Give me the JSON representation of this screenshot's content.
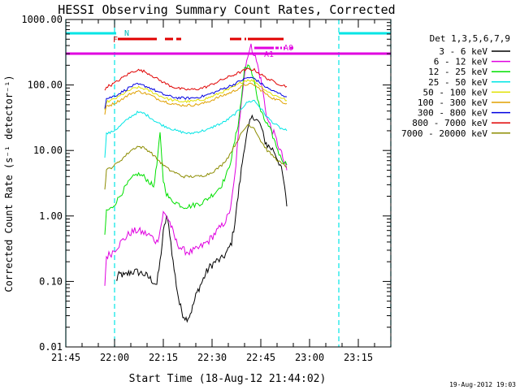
{
  "chart_data": {
    "type": "line",
    "title": "HESSI Observing Summary Count Rates, Corrected",
    "xlabel": "Start Time (18-Aug-12 21:44:02)",
    "ylabel": "Corrected Count Rate (s⁻¹ detector⁻¹)",
    "yscale": "log",
    "ylim": [
      0.01,
      1000
    ],
    "xlim_minutes_after_2145": [
      0,
      100
    ],
    "x_ticks": [
      "21:45",
      "22:00",
      "22:15",
      "22:30",
      "22:45",
      "23:00",
      "23:15"
    ],
    "y_ticks": [
      "0.01",
      "0.10",
      "1.00",
      "10.00",
      "100.00",
      "1000.00"
    ],
    "timestamp": "19-Aug-2012 19:03",
    "legend": {
      "header": "Det 1,3,5,6,7,9",
      "placement": "right"
    },
    "flag_labels": {
      "night": "N",
      "flare": "F",
      "attenuator": "A0",
      "attenuator_level": "A1"
    },
    "flag_bars": {
      "night": {
        "color": "#00e5e5",
        "segments": [
          [
            0,
            15.5
          ],
          [
            84,
            100
          ]
        ]
      },
      "flare": {
        "color": "#e00000",
        "segments": [
          [
            16,
            28
          ],
          [
            30.5,
            33
          ],
          [
            34,
            35.5
          ],
          [
            50.5,
            54
          ],
          [
            55,
            55.5
          ],
          [
            56,
            67
          ]
        ]
      },
      "attenuator_a1": {
        "color": "#e000e0",
        "segments": [
          [
            0,
            100
          ]
        ]
      },
      "attenuator_a0": {
        "color": "#e000e0",
        "segments": [
          [
            58,
            64
          ],
          [
            64.5,
            65.5
          ],
          [
            66,
            66.5
          ],
          [
            67,
            67.5
          ],
          [
            69,
            70
          ]
        ]
      }
    },
    "night_lines_minutes": [
      0,
      15,
      84,
      100
    ],
    "series": [
      {
        "name": "3 - 6 keV",
        "color": "#000000",
        "x": [
          15.5,
          16,
          17,
          18,
          19,
          20,
          22,
          24,
          25,
          26,
          28,
          29,
          30,
          31,
          32,
          33,
          34,
          35,
          36,
          37,
          38,
          39,
          40,
          41,
          42,
          43,
          44,
          45,
          46,
          48,
          50,
          51,
          52,
          53,
          54,
          55,
          56,
          57,
          58,
          59,
          60,
          61,
          62,
          64,
          66,
          67,
          68
        ],
        "y": [
          0.1,
          0.12,
          0.13,
          0.12,
          0.13,
          0.14,
          0.14,
          0.13,
          0.12,
          0.11,
          0.09,
          0.2,
          0.55,
          1.0,
          0.55,
          0.2,
          0.09,
          0.045,
          0.032,
          0.027,
          0.03,
          0.04,
          0.06,
          0.08,
          0.1,
          0.13,
          0.16,
          0.18,
          0.2,
          0.22,
          0.3,
          0.4,
          0.8,
          2.0,
          5.0,
          12,
          20,
          30,
          33,
          28,
          24,
          15,
          12,
          10,
          6,
          3.5,
          1.4
        ]
      },
      {
        "name": "6 - 12 keV",
        "color": "#e000e0",
        "x": [
          12,
          12.5,
          14,
          16,
          18,
          20,
          22,
          24,
          26,
          28,
          29,
          30,
          31,
          32,
          33,
          34,
          36,
          38,
          40,
          42,
          44,
          46,
          48,
          50,
          51,
          52,
          53,
          54,
          55,
          56,
          57,
          58,
          59,
          60,
          61,
          62,
          64,
          66,
          68
        ],
        "y": [
          0.09,
          0.24,
          0.27,
          0.35,
          0.45,
          0.56,
          0.6,
          0.55,
          0.5,
          0.4,
          0.6,
          1.1,
          1.0,
          0.8,
          0.55,
          0.4,
          0.3,
          0.28,
          0.3,
          0.35,
          0.42,
          0.55,
          0.7,
          1.0,
          1.6,
          4.0,
          15,
          60,
          150,
          300,
          380,
          300,
          200,
          120,
          60,
          30,
          18,
          10,
          5
        ]
      },
      {
        "name": "12 - 25 keV",
        "color": "#00e000",
        "x": [
          12,
          12.5,
          14,
          16,
          18,
          20,
          22,
          24,
          26,
          27,
          28,
          29,
          30,
          31,
          32,
          34,
          36,
          38,
          40,
          42,
          44,
          46,
          48,
          50,
          51,
          52,
          53,
          54,
          55,
          56,
          57,
          58,
          59,
          60,
          61,
          62,
          63,
          64,
          66,
          68
        ],
        "y": [
          0.5,
          1.2,
          1.3,
          1.8,
          2.6,
          3.6,
          4.4,
          4.0,
          3.2,
          2.8,
          6.0,
          18,
          3.5,
          2.2,
          1.8,
          1.6,
          1.4,
          1.4,
          1.5,
          1.6,
          1.9,
          2.3,
          3.0,
          5.0,
          8.0,
          14,
          25,
          60,
          180,
          200,
          160,
          120,
          60,
          40,
          30,
          25,
          20,
          15,
          8,
          6
        ]
      },
      {
        "name": "25 - 50 keV",
        "color": "#00e5e5",
        "x": [
          12,
          12.5,
          14,
          16,
          18,
          20,
          22,
          24,
          26,
          28,
          30,
          32,
          34,
          36,
          38,
          40,
          42,
          44,
          46,
          48,
          50,
          52,
          54,
          56,
          58,
          60,
          62,
          64,
          66,
          68
        ],
        "y": [
          8,
          18,
          19,
          22,
          27,
          33,
          38,
          37,
          32,
          27,
          24,
          22,
          20,
          19,
          18,
          19,
          20,
          21,
          24,
          26,
          30,
          36,
          44,
          55,
          58,
          44,
          32,
          26,
          22,
          20
        ]
      },
      {
        "name": "50 - 100 keV",
        "color": "#e0e000",
        "x": [
          12,
          12.5,
          14,
          16,
          18,
          20,
          22,
          24,
          26,
          28,
          30,
          32,
          34,
          36,
          38,
          40,
          42,
          44,
          46,
          48,
          50,
          52,
          54,
          56,
          58,
          60,
          62,
          64,
          66,
          68
        ],
        "y": [
          40,
          55,
          58,
          65,
          75,
          85,
          92,
          88,
          80,
          72,
          65,
          60,
          57,
          56,
          56,
          57,
          60,
          64,
          70,
          78,
          85,
          95,
          110,
          120,
          115,
          95,
          80,
          70,
          65,
          58
        ]
      },
      {
        "name": "100 - 300 keV",
        "color": "#e0a000",
        "x": [
          12,
          12.5,
          14,
          16,
          18,
          20,
          22,
          24,
          26,
          28,
          30,
          32,
          34,
          36,
          38,
          40,
          42,
          44,
          46,
          48,
          50,
          52,
          54,
          56,
          58,
          60,
          62,
          64,
          66,
          68
        ],
        "y": [
          35,
          48,
          50,
          56,
          64,
          74,
          80,
          76,
          70,
          62,
          57,
          53,
          50,
          49,
          49,
          50,
          52,
          56,
          62,
          68,
          74,
          82,
          94,
          104,
          100,
          84,
          70,
          62,
          57,
          52
        ]
      },
      {
        "name": "300 - 800 keV",
        "color": "#0000e0",
        "x": [
          12,
          12.5,
          14,
          16,
          18,
          20,
          22,
          24,
          26,
          28,
          30,
          32,
          34,
          36,
          38,
          40,
          42,
          44,
          46,
          48,
          50,
          52,
          54,
          56,
          58,
          60,
          62,
          64,
          66,
          68
        ],
        "y": [
          45,
          62,
          65,
          72,
          82,
          95,
          102,
          98,
          90,
          80,
          72,
          67,
          64,
          63,
          63,
          64,
          67,
          72,
          78,
          86,
          94,
          104,
          118,
          130,
          126,
          106,
          90,
          80,
          73,
          66
        ]
      },
      {
        "name": "800 - 7000 keV",
        "color": "#e00000",
        "x": [
          12,
          12.5,
          14,
          16,
          18,
          20,
          22,
          24,
          26,
          28,
          30,
          32,
          34,
          36,
          38,
          40,
          42,
          44,
          46,
          48,
          50,
          52,
          54,
          56,
          58,
          60,
          62,
          64,
          66,
          68
        ],
        "y": [
          80,
          95,
          100,
          115,
          135,
          155,
          170,
          162,
          145,
          125,
          110,
          98,
          90,
          86,
          85,
          86,
          90,
          97,
          108,
          120,
          132,
          145,
          160,
          175,
          170,
          145,
          125,
          112,
          102,
          95
        ]
      },
      {
        "name": "7000 - 20000 keV",
        "color": "#8c8c00",
        "x": [
          12,
          12.5,
          14,
          16,
          18,
          20,
          22,
          24,
          26,
          28,
          30,
          32,
          34,
          36,
          38,
          40,
          42,
          44,
          46,
          48,
          50,
          52,
          54,
          56,
          58,
          60,
          62,
          64,
          66,
          68
        ],
        "y": [
          2.5,
          5,
          5.5,
          6.5,
          8,
          10,
          11.5,
          11,
          9.5,
          7.5,
          6,
          5,
          4.5,
          4.0,
          4.0,
          4.0,
          4.1,
          4.4,
          5,
          6,
          8,
          12,
          18,
          25,
          22,
          14,
          10,
          8,
          6.5,
          5.5
        ]
      }
    ]
  }
}
